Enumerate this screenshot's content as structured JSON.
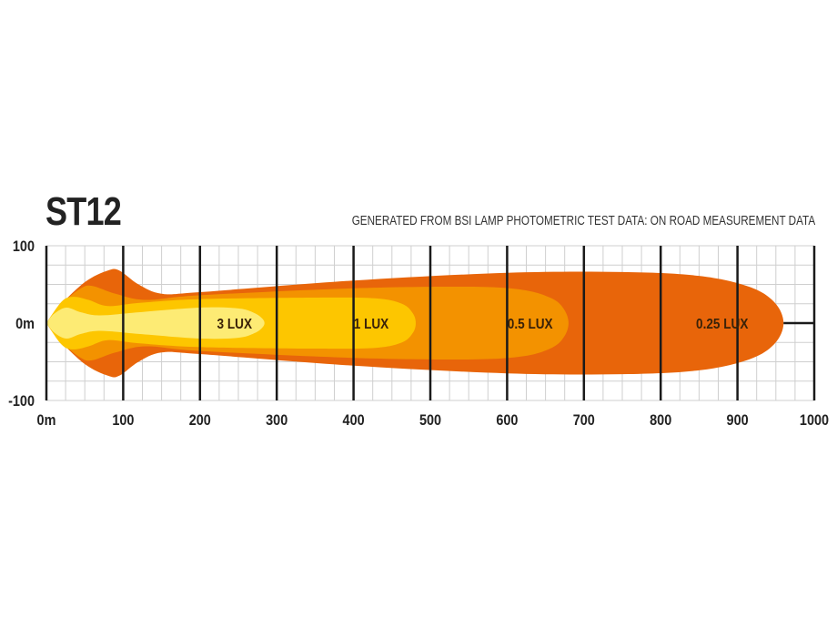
{
  "title": "ST12",
  "subtitle": "GENERATED FROM BSI LAMP PHOTOMETRIC TEST DATA: ON ROAD MEASUREMENT DATA",
  "chart_data": {
    "type": "area",
    "title": "ST12",
    "subtitle": "GENERATED FROM BSI LAMP PHOTOMETRIC TEST DATA: ON ROAD MEASUREMENT DATA",
    "xlim": [
      0,
      1000
    ],
    "ylim": [
      -100,
      100
    ],
    "x_ticks": [
      "0m",
      "100",
      "200",
      "300",
      "400",
      "500",
      "600",
      "700",
      "800",
      "900",
      "1000"
    ],
    "y_ticks": [
      "100",
      "0m",
      "-100"
    ],
    "grid": true,
    "series": [
      {
        "name": "0.25 LUX",
        "color": "#e8650a",
        "label_x": 880,
        "half_width": [
          [
            0,
            0
          ],
          [
            15,
            20
          ],
          [
            50,
            53
          ],
          [
            80,
            68
          ],
          [
            95,
            68
          ],
          [
            120,
            50
          ],
          [
            150,
            38
          ],
          [
            200,
            40
          ],
          [
            400,
            55
          ],
          [
            600,
            65
          ],
          [
            750,
            66
          ],
          [
            850,
            61
          ],
          [
            915,
            47
          ],
          [
            948,
            27
          ],
          [
            960,
            0
          ]
        ]
      },
      {
        "name": "0.5 LUX",
        "color": "#f39200",
        "label_x": 630,
        "half_width": [
          [
            0,
            0
          ],
          [
            20,
            25
          ],
          [
            45,
            45
          ],
          [
            60,
            48
          ],
          [
            90,
            38
          ],
          [
            130,
            30
          ],
          [
            200,
            36
          ],
          [
            400,
            45
          ],
          [
            550,
            47
          ],
          [
            620,
            43
          ],
          [
            658,
            32
          ],
          [
            674,
            18
          ],
          [
            680,
            0
          ]
        ]
      },
      {
        "name": "1 LUX",
        "color": "#fdc600",
        "label_x": 423,
        "half_width": [
          [
            0,
            0
          ],
          [
            20,
            28
          ],
          [
            35,
            34
          ],
          [
            55,
            30
          ],
          [
            80,
            22
          ],
          [
            120,
            26
          ],
          [
            200,
            31
          ],
          [
            350,
            33
          ],
          [
            428,
            32
          ],
          [
            463,
            25
          ],
          [
            477,
            13
          ],
          [
            481,
            0
          ]
        ]
      },
      {
        "name": "3 LUX",
        "color": "#fdeb74",
        "label_x": 245,
        "half_width": [
          [
            0,
            0
          ],
          [
            10,
            12
          ],
          [
            26,
            20
          ],
          [
            45,
            14
          ],
          [
            70,
            10
          ],
          [
            120,
            14
          ],
          [
            200,
            20
          ],
          [
            250,
            19
          ],
          [
            271,
            13
          ],
          [
            281,
            6
          ],
          [
            284,
            0
          ]
        ]
      }
    ]
  }
}
